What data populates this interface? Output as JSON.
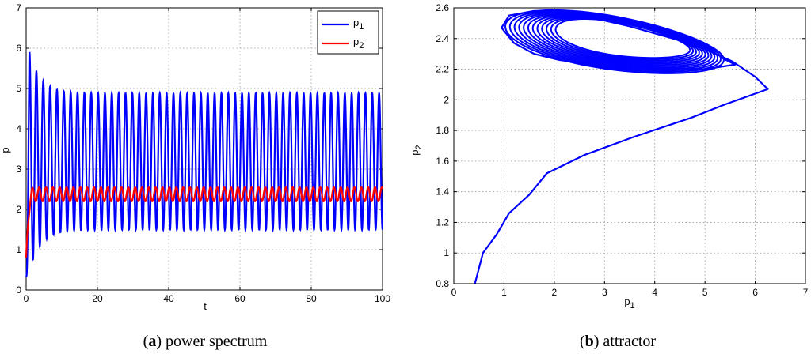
{
  "chart_data": [
    {
      "type": "line",
      "xlabel": "t",
      "ylabel": "p",
      "xlim": [
        0,
        100
      ],
      "ylim": [
        0,
        7
      ],
      "xticks": [
        "0",
        "20",
        "40",
        "60",
        "80",
        "100"
      ],
      "yticks": [
        "0",
        "1",
        "2",
        "3",
        "4",
        "5",
        "6",
        "7"
      ],
      "grid": true,
      "legend_position": "top-right",
      "series": [
        {
          "name": "p1",
          "color": "#0000ff",
          "description_values": {
            "initial": 0.35,
            "first_peak": 6.25,
            "first_trough": 0.9,
            "steady_max": 4.88,
            "steady_min": 1.5,
            "cycles": 52
          }
        },
        {
          "name": "p2",
          "color": "#ff0000",
          "description_values": {
            "initial": 0.8,
            "steady_max": 2.55,
            "steady_min": 2.2,
            "cycles": 52
          }
        }
      ],
      "legend": {
        "p1_main": "p",
        "p1_sub": "1",
        "p2_main": "p",
        "p2_sub": "2"
      },
      "caption": {
        "label": "a",
        "text": "power spectrum"
      }
    },
    {
      "type": "line",
      "xlabel_main": "p",
      "xlabel_sub": "1",
      "ylabel_main": "p",
      "ylabel_sub": "2",
      "xlim": [
        0,
        7
      ],
      "ylim": [
        0.8,
        2.6
      ],
      "xticks": [
        "0",
        "1",
        "2",
        "3",
        "4",
        "5",
        "6",
        "7"
      ],
      "yticks": [
        "0.8",
        "1",
        "1.2",
        "1.4",
        "1.6",
        "1.8",
        "2",
        "2.2",
        "2.4",
        "2.6"
      ],
      "grid": true,
      "series": [
        {
          "color": "#0000ff",
          "transient": [
            [
              0.42,
              0.8
            ],
            [
              0.58,
              1.0
            ],
            [
              0.85,
              1.12
            ],
            [
              1.1,
              1.26
            ],
            [
              1.5,
              1.38
            ],
            [
              1.85,
              1.52
            ],
            [
              2.6,
              1.64
            ],
            [
              3.6,
              1.76
            ],
            [
              4.7,
              1.88
            ],
            [
              5.4,
              1.97
            ],
            [
              6.25,
              2.07
            ],
            [
              6.0,
              2.15
            ],
            [
              5.55,
              2.25
            ],
            [
              4.8,
              2.36
            ],
            [
              3.5,
              2.48
            ],
            [
              2.3,
              2.57
            ],
            [
              1.6,
              2.58
            ],
            [
              1.1,
              2.55
            ],
            [
              0.95,
              2.47
            ],
            [
              1.2,
              2.37
            ],
            [
              1.6,
              2.3
            ],
            [
              2.1,
              2.26
            ],
            [
              3.0,
              2.22
            ],
            [
              4.0,
              2.21
            ],
            [
              5.0,
              2.2
            ],
            [
              5.6,
              2.23
            ],
            [
              5.3,
              2.28
            ]
          ],
          "limit_cycle": {
            "x_min": 1.05,
            "x_max": 5.4,
            "y_min": 2.2,
            "y_max": 2.55,
            "center_x": 3.2,
            "center_y": 2.37
          }
        }
      ],
      "caption": {
        "label": "b",
        "text": "attractor"
      }
    }
  ]
}
